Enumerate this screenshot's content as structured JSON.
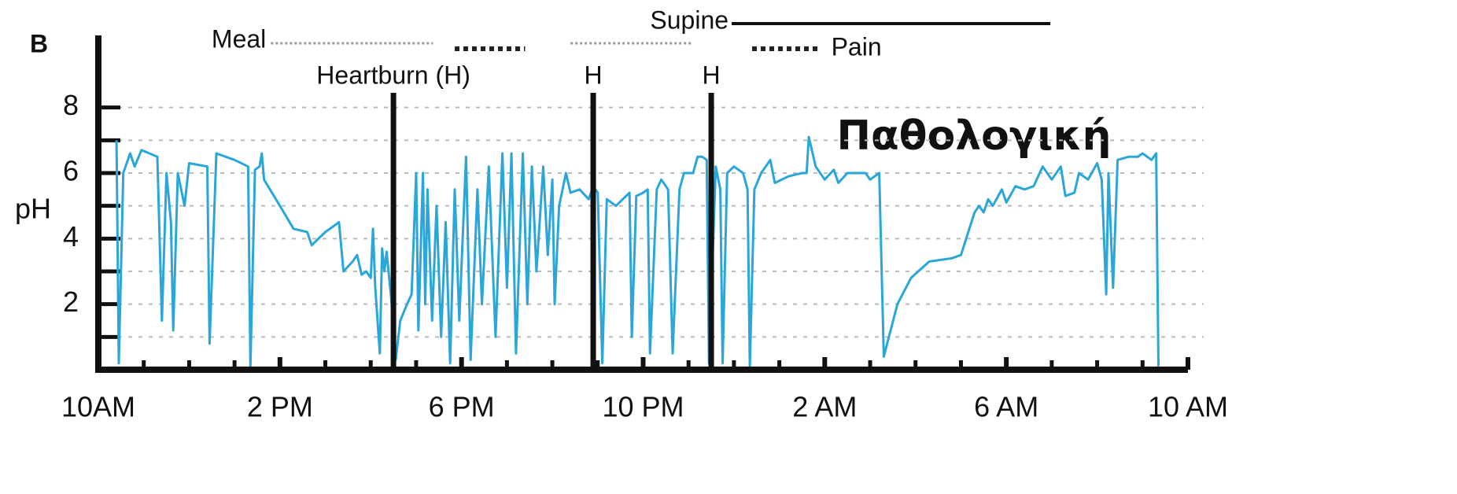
{
  "chart_data": {
    "type": "line",
    "panel_label": "B",
    "ylabel": "pH",
    "annotation_text": "Παθολογική",
    "color": "#2aa6d9",
    "xlim": [
      0,
      24
    ],
    "xticks": [
      {
        "value": 0,
        "label": "10AM"
      },
      {
        "value": 4,
        "label": "2 PM"
      },
      {
        "value": 8,
        "label": "6 PM"
      },
      {
        "value": 12,
        "label": "10 PM"
      },
      {
        "value": 16,
        "label": "2 AM"
      },
      {
        "value": 20,
        "label": "6 AM"
      },
      {
        "value": 24,
        "label": "10 AM"
      }
    ],
    "minor_xticks": [
      1,
      2,
      3,
      5,
      6,
      7,
      9,
      10,
      11,
      13,
      14,
      15,
      17,
      18,
      19,
      21,
      22,
      23
    ],
    "ylim": [
      0,
      10.2
    ],
    "yticks": [
      2,
      4,
      6,
      8
    ],
    "minor_yticks": [
      1,
      3,
      5,
      7
    ],
    "grid": true,
    "events": {
      "meal": {
        "label": "Meal",
        "color": "#999999",
        "intervals": [
          [
            3.8,
            7.37
          ],
          [
            10.4,
            13.1
          ]
        ]
      },
      "pain": {
        "label": "Pain",
        "color": "#222222",
        "intervals": [
          [
            7.85,
            9.4
          ],
          [
            14.4,
            15.9
          ]
        ]
      },
      "supine": {
        "label": "Supine",
        "color": "#111111",
        "intervals": [
          [
            13.95,
            20.97
          ]
        ]
      },
      "heartburn": {
        "labels": [
          "Heartburn (H)",
          "H",
          "H"
        ],
        "x": [
          6.5,
          10.9,
          13.5
        ]
      }
    },
    "x": [
      0.4,
      0.45,
      0.55,
      0.7,
      0.8,
      0.95,
      1.3,
      1.4,
      1.5,
      1.6,
      1.65,
      1.75,
      1.9,
      2.0,
      2.4,
      2.45,
      2.6,
      3.0,
      3.3,
      3.35,
      3.45,
      3.55,
      3.6,
      3.65,
      4.0,
      4.3,
      4.6,
      4.7,
      5.0,
      5.3,
      5.4,
      5.6,
      5.7,
      5.8,
      5.9,
      6.0,
      6.05,
      6.1,
      6.2,
      6.25,
      6.3,
      6.35,
      6.45,
      6.55,
      6.65,
      6.8,
      6.9,
      7.0,
      7.05,
      7.15,
      7.2,
      7.25,
      7.35,
      7.45,
      7.55,
      7.65,
      7.75,
      7.85,
      7.95,
      8.1,
      8.2,
      8.35,
      8.45,
      8.6,
      8.75,
      8.9,
      9.0,
      9.1,
      9.2,
      9.35,
      9.45,
      9.55,
      9.65,
      9.8,
      9.9,
      10.0,
      10.05,
      10.15,
      10.3,
      10.4,
      10.6,
      10.8,
      10.9,
      11.0,
      11.1,
      11.2,
      11.4,
      11.7,
      11.75,
      11.85,
      12.0,
      12.1,
      12.15,
      12.3,
      12.4,
      12.55,
      12.65,
      12.8,
      12.9,
      13.1,
      13.2,
      13.3,
      13.4,
      13.45,
      13.6,
      13.7,
      13.75,
      13.85,
      14.0,
      14.2,
      14.3,
      14.35,
      14.45,
      14.6,
      14.8,
      14.9,
      15.2,
      15.5,
      15.6,
      15.65,
      15.8,
      16.0,
      16.2,
      16.3,
      16.5,
      16.9,
      17.0,
      17.2,
      17.3,
      17.6,
      17.9,
      18.3,
      18.8,
      19.0,
      19.3,
      19.4,
      19.5,
      19.6,
      19.7,
      19.9,
      20.0,
      20.2,
      20.4,
      20.6,
      20.8,
      21.0,
      21.2,
      21.3,
      21.5,
      21.6,
      21.8,
      22.0,
      22.1,
      22.2,
      22.25,
      22.35,
      22.45,
      22.7,
      22.9,
      23.0,
      23.2,
      23.3,
      23.35
    ],
    "values": [
      7.0,
      0.2,
      6.0,
      6.6,
      6.2,
      6.7,
      6.5,
      1.5,
      6.0,
      4.5,
      1.2,
      6.0,
      5.0,
      6.3,
      6.2,
      0.8,
      6.6,
      6.4,
      6.2,
      0.1,
      6.1,
      6.2,
      6.6,
      5.8,
      5.0,
      4.3,
      4.2,
      3.8,
      4.2,
      4.5,
      3.0,
      3.3,
      3.5,
      2.9,
      3.0,
      2.8,
      4.3,
      2.5,
      0.5,
      3.7,
      3.0,
      3.6,
      2.2,
      0.3,
      1.5,
      2.0,
      2.3,
      6.0,
      1.2,
      6.0,
      2.0,
      5.5,
      1.5,
      5.0,
      1.0,
      4.5,
      0.2,
      5.5,
      1.5,
      6.5,
      0.3,
      5.5,
      2.0,
      6.2,
      1.0,
      6.6,
      2.5,
      6.6,
      0.5,
      6.6,
      2.0,
      6.2,
      3.0,
      6.2,
      3.5,
      5.8,
      2.0,
      5.0,
      6.0,
      5.4,
      5.5,
      5.2,
      5.6,
      5.4,
      0.2,
      5.2,
      5.0,
      5.4,
      1.0,
      5.3,
      5.4,
      5.5,
      0.5,
      5.5,
      5.8,
      5.5,
      0.5,
      5.5,
      6.0,
      6.0,
      6.5,
      6.5,
      6.4,
      0.2,
      6.2,
      5.5,
      0.2,
      6.0,
      6.2,
      6.0,
      5.5,
      0.1,
      5.5,
      6.0,
      6.4,
      5.7,
      5.9,
      6.0,
      6.0,
      7.1,
      6.2,
      5.8,
      6.1,
      5.7,
      6.0,
      6.0,
      5.8,
      6.0,
      0.4,
      2.0,
      2.8,
      3.3,
      3.4,
      3.5,
      4.8,
      5.0,
      4.8,
      5.2,
      5.0,
      5.5,
      5.1,
      5.6,
      5.5,
      5.6,
      6.2,
      5.8,
      6.2,
      5.3,
      5.4,
      6.0,
      5.8,
      6.3,
      5.8,
      2.3,
      6.0,
      2.5,
      6.4,
      6.5,
      6.5,
      6.6,
      6.4,
      6.6,
      0.1
    ]
  }
}
